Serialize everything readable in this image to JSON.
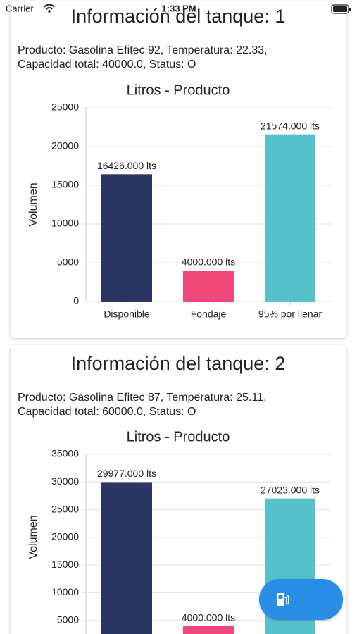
{
  "status_bar": {
    "carrier": "Carrier",
    "time": "1:33 PM"
  },
  "cards": [
    {
      "title": "Información del tanque: 1",
      "info_lines": [
        "Producto: Gasolina Efitec 92, Temperatura: 22.33,",
        "Capacidad total: 40000.0, Status: O"
      ]
    },
    {
      "title": "Información del tanque: 2",
      "info_lines": [
        "Producto: Gasolina Efitec 87, Temperatura: 25.11,",
        "Capacidad total: 60000.0, Status: O"
      ]
    }
  ],
  "chart_data": [
    {
      "type": "bar",
      "title": "Litros - Producto",
      "y_label": "Volumen",
      "categories": [
        "Disponible",
        "Fondaje",
        "95% por llenar"
      ],
      "values": [
        16426,
        4000,
        21574
      ],
      "value_labels": [
        "16426.000 lts",
        "4000.000 lts",
        "21574.000 lts"
      ],
      "colors": [
        "#2b3561",
        "#f0487b",
        "#56c1cb"
      ],
      "ylim": [
        0,
        25000
      ],
      "yticks": [
        0,
        5000,
        10000,
        15000,
        20000,
        25000
      ],
      "grid": true
    },
    {
      "type": "bar",
      "title": "Litros - Producto",
      "y_label": "Volumen",
      "values": [
        29977,
        4000,
        27023
      ],
      "value_labels": [
        "29977.000 lts",
        "4000.000 lts",
        "27023.000 lts"
      ],
      "colors": [
        "#2b3561",
        "#f0487b",
        "#56c1cb"
      ],
      "ylim": [
        0,
        35000
      ],
      "yticks": [
        5000,
        10000,
        15000,
        20000,
        25000,
        30000,
        35000
      ],
      "grid": true
    }
  ]
}
